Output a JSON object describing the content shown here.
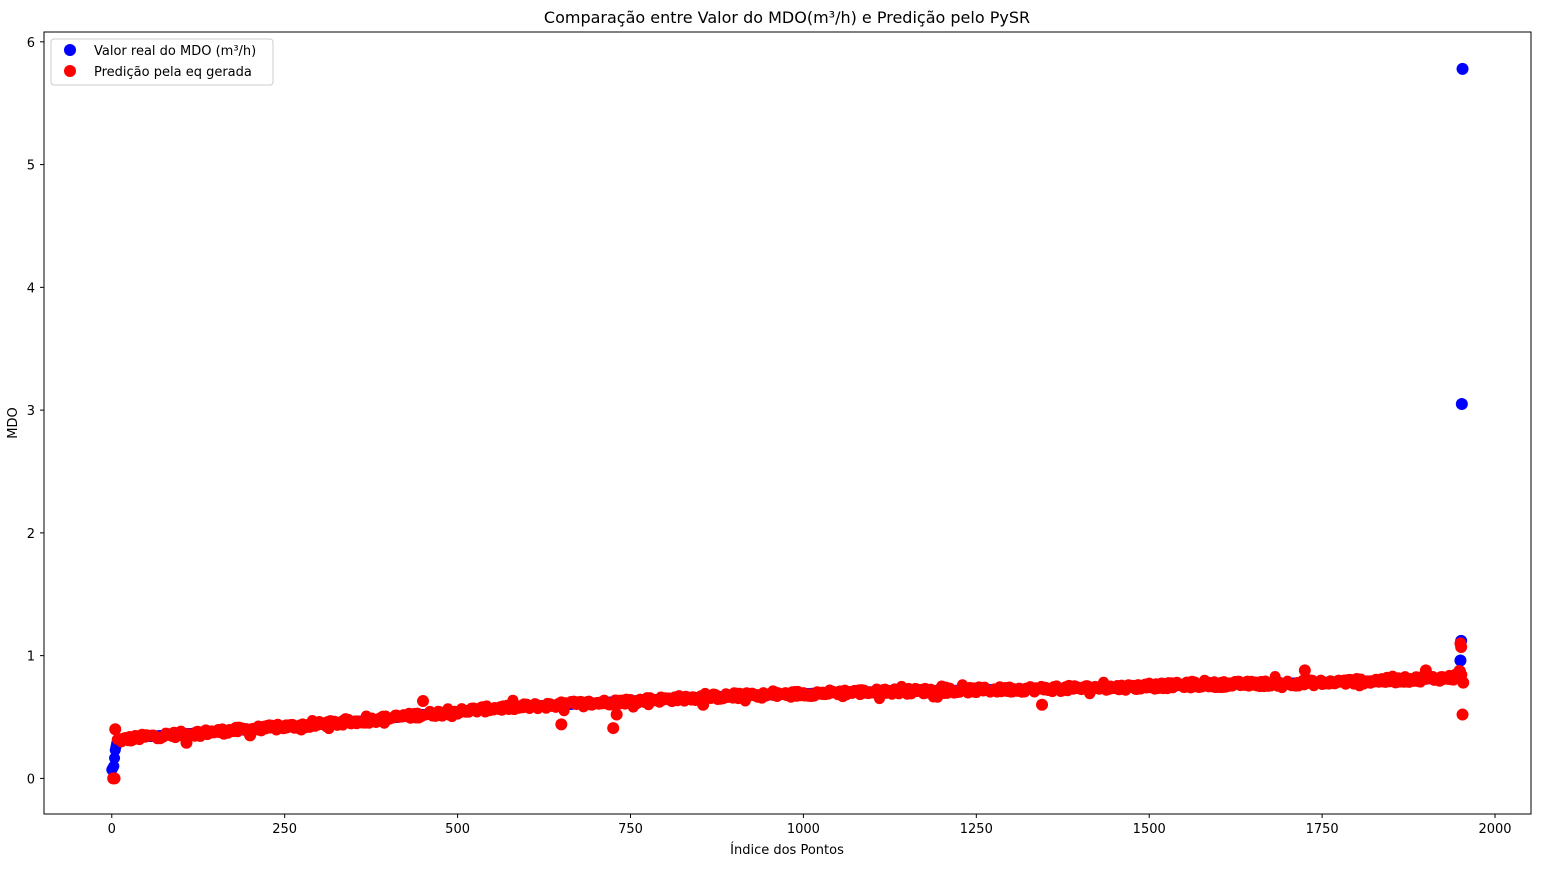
{
  "chart_data": {
    "type": "scatter",
    "title": "Comparação entre Valor do MDO(m³/h) e Predição pelo PySR",
    "xlabel": "Índice dos Pontos",
    "ylabel": "MDO",
    "xlim": [
      -98,
      2052
    ],
    "ylim": [
      -0.29,
      6.08
    ],
    "x_ticks": [
      0,
      250,
      500,
      750,
      1000,
      1250,
      1500,
      1750,
      2000
    ],
    "y_ticks": [
      0,
      1,
      2,
      3,
      4,
      5,
      6
    ],
    "grid": false,
    "legend_position": "upper-left",
    "series": [
      {
        "name": "Valor real do MDO (m³/h)",
        "color": "#0000ff",
        "trend": [
          [
            0,
            0.07
          ],
          [
            3,
            0.1
          ],
          [
            5,
            0.23
          ],
          [
            8,
            0.31
          ],
          [
            50,
            0.34
          ],
          [
            150,
            0.38
          ],
          [
            250,
            0.42
          ],
          [
            350,
            0.46
          ],
          [
            450,
            0.52
          ],
          [
            550,
            0.57
          ],
          [
            650,
            0.6
          ],
          [
            750,
            0.63
          ],
          [
            850,
            0.66
          ],
          [
            950,
            0.68
          ],
          [
            1050,
            0.7
          ],
          [
            1150,
            0.71
          ],
          [
            1250,
            0.72
          ],
          [
            1350,
            0.73
          ],
          [
            1450,
            0.74
          ],
          [
            1550,
            0.76
          ],
          [
            1650,
            0.77
          ],
          [
            1750,
            0.78
          ],
          [
            1850,
            0.8
          ],
          [
            1940,
            0.82
          ],
          [
            1948,
            0.86
          ]
        ],
        "outliers": [
          [
            1950,
            0.96
          ],
          [
            1951,
            1.12
          ],
          [
            1952,
            3.05
          ],
          [
            1953,
            5.78
          ]
        ]
      },
      {
        "name": "Predição pela eq gerada",
        "color": "#ff0000",
        "outliers": [
          [
            2,
            0.0
          ],
          [
            4,
            0.0
          ],
          [
            5,
            0.4
          ],
          [
            108,
            0.29
          ],
          [
            200,
            0.35
          ],
          [
            450,
            0.63
          ],
          [
            650,
            0.44
          ],
          [
            725,
            0.41
          ],
          [
            730,
            0.52
          ],
          [
            855,
            0.6
          ],
          [
            1057,
            0.67
          ],
          [
            1345,
            0.6
          ],
          [
            1725,
            0.88
          ],
          [
            1900,
            0.88
          ],
          [
            1950,
            1.1
          ],
          [
            1951,
            1.07
          ],
          [
            1953,
            0.52
          ],
          [
            1954,
            0.78
          ]
        ]
      }
    ]
  }
}
